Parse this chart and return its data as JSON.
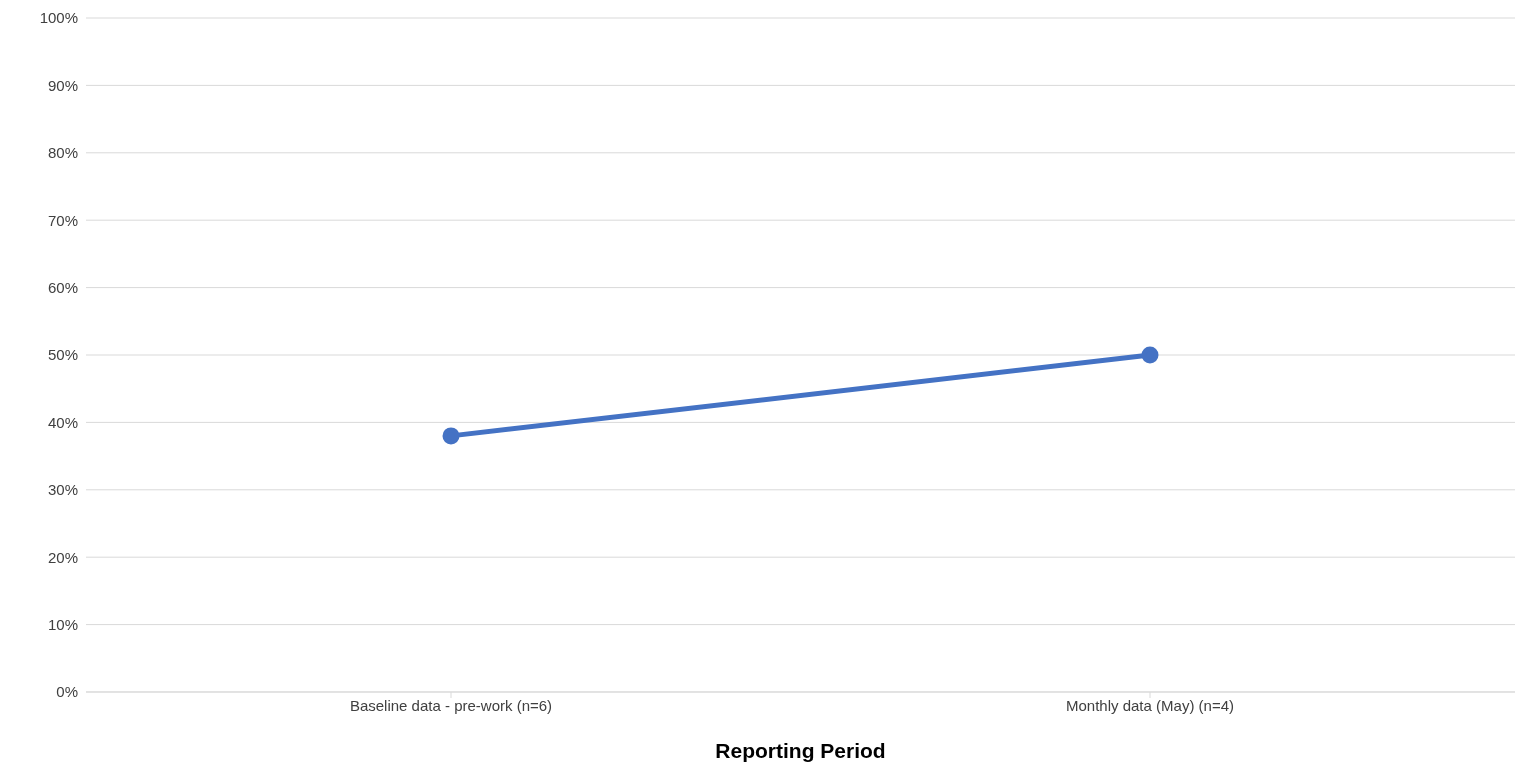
{
  "chart_data": {
    "type": "line",
    "xlabel": "Reporting Period",
    "categories": [
      "Baseline data - pre-work (n=6)",
      "Monthly data (May) (n=4)"
    ],
    "series": [
      {
        "color": "#4472c4",
        "values": [
          38,
          50
        ]
      }
    ],
    "ylim": [
      0,
      100
    ],
    "yticks": [
      {
        "value": 0,
        "label": "0%"
      },
      {
        "value": 10,
        "label": "10%"
      },
      {
        "value": 20,
        "label": "20%"
      },
      {
        "value": 30,
        "label": "30%"
      },
      {
        "value": 40,
        "label": "40%"
      },
      {
        "value": 50,
        "label": "50%"
      },
      {
        "value": 60,
        "label": "60%"
      },
      {
        "value": 70,
        "label": "70%"
      },
      {
        "value": 80,
        "label": "80%"
      },
      {
        "value": 90,
        "label": "90%"
      },
      {
        "value": 100,
        "label": "100%"
      }
    ],
    "grid": "y",
    "marker": "circle",
    "line_style": "solid"
  }
}
